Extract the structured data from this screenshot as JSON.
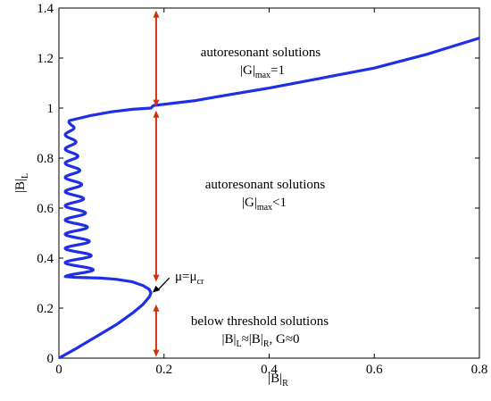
{
  "chart_data": {
    "type": "line",
    "xlabel": "|B|",
    "xlabel_sub": "R",
    "ylabel": "|B|",
    "ylabel_sub": "L",
    "xlim": [
      0,
      0.8
    ],
    "ylim": [
      0,
      1.4
    ],
    "x_ticks": [
      0,
      0.2,
      0.4,
      0.6,
      0.8
    ],
    "x_tick_labels": [
      "0",
      "0.2",
      "0.4",
      "0.6",
      "0.8"
    ],
    "y_ticks": [
      0,
      0.2,
      0.4,
      0.6,
      0.8,
      1.0,
      1.2,
      1.4
    ],
    "y_tick_labels": [
      "0",
      "0.2",
      "0.4",
      "0.6",
      "0.8",
      "1",
      "1.2",
      "1.4"
    ],
    "grid": false,
    "series_color": "#1f2fe6",
    "arrow_color": "#cc3311",
    "curve_lower": {
      "x": [
        0.0,
        0.03,
        0.07,
        0.11,
        0.14,
        0.16,
        0.172,
        0.175,
        0.172,
        0.16,
        0.14,
        0.11,
        0.08,
        0.05,
        0.03,
        0.02
      ],
      "y": [
        0.0,
        0.035,
        0.085,
        0.135,
        0.18,
        0.215,
        0.245,
        0.26,
        0.275,
        0.29,
        0.305,
        0.315,
        0.32,
        0.322,
        0.323,
        0.325
      ]
    },
    "oscillation": {
      "y_start": 0.325,
      "y_end": 0.95,
      "cycles": 11,
      "x_min": 0.012,
      "amplitude_start": 0.055,
      "amplitude_end": 0.015,
      "x_top_left": 0.02
    },
    "curve_upper": {
      "x": [
        0.02,
        0.06,
        0.1,
        0.14,
        0.175,
        0.18,
        0.22,
        0.26,
        0.3,
        0.4,
        0.5,
        0.6,
        0.7,
        0.8
      ],
      "y": [
        0.95,
        0.97,
        0.985,
        0.995,
        1.0,
        1.01,
        1.02,
        1.03,
        1.045,
        1.08,
        1.12,
        1.16,
        1.215,
        1.28
      ]
    },
    "arrows": [
      {
        "x": 0.185,
        "y_from": 1.005,
        "y_to": 1.39
      },
      {
        "x": 0.185,
        "y_from": 0.305,
        "y_to": 0.99
      },
      {
        "x": 0.185,
        "y_from": 0.005,
        "y_to": 0.215
      }
    ],
    "annotations": {
      "region_top_line1": "autoresonant solutions",
      "region_top_line2_main": "|G|",
      "region_top_line2_sub": "max",
      "region_top_line2_tail": "=1",
      "region_mid_line1": "autoresonant solutions",
      "region_mid_line2_main": "|G|",
      "region_mid_line2_sub": "max",
      "region_mid_line2_tail": "<1",
      "region_low_line1": "below threshold solutions",
      "region_low_line2_a": "|B|",
      "region_low_line2_a_sub": "L",
      "region_low_line2_b": "≈|B|",
      "region_low_line2_b_sub": "R",
      "region_low_line2_tail": ", G≈0",
      "mu_label_main": "μ=μ",
      "mu_label_sub": "cr"
    }
  }
}
